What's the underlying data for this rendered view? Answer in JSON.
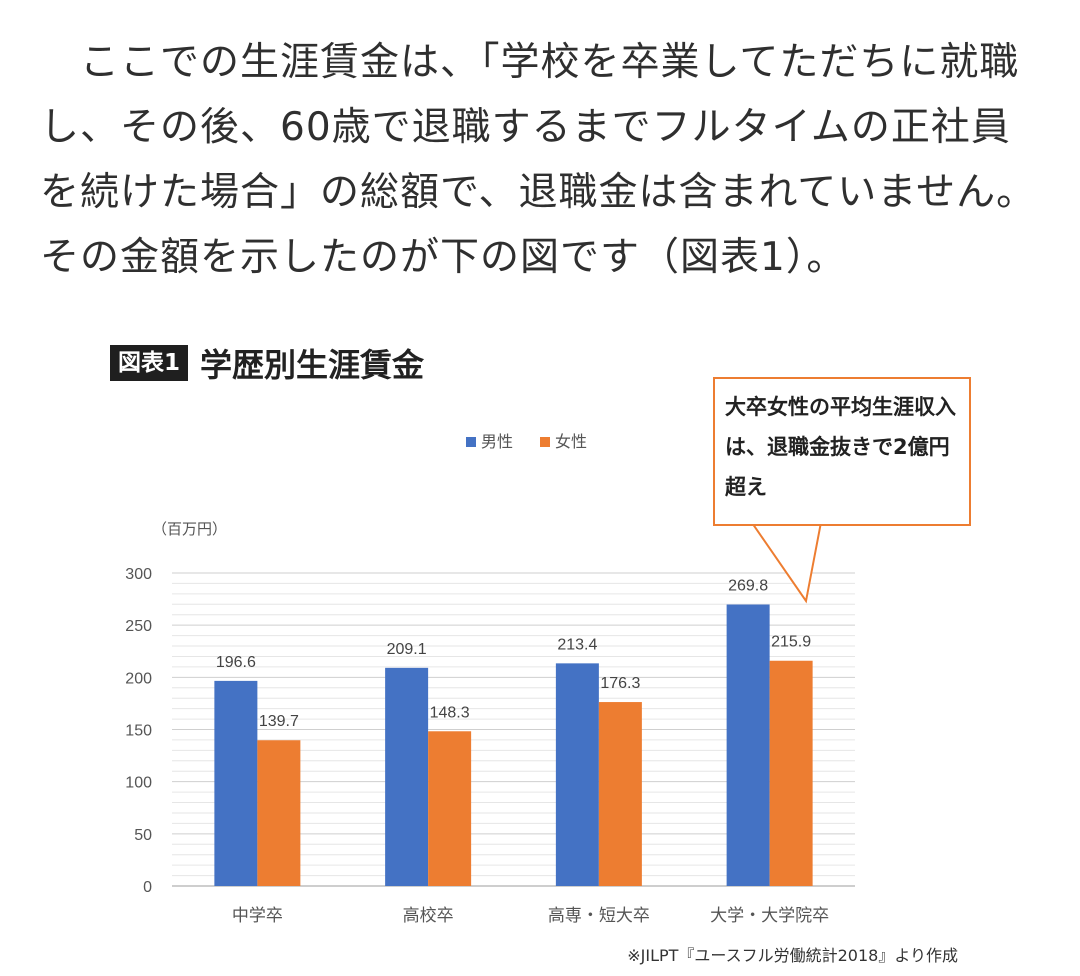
{
  "paragraph": "ここでの生涯賃金は、「学校を卒業してただちに就職し、その後、60歳で退職するまでフルタイムの正社員を続けた場合」の総額で、退職金は含まれていません。その金額を示したのが下の図です（図表1）。",
  "figure": {
    "badge": "図表1",
    "title": "学歴別生涯賃金",
    "callout": "大卒女性の平均生涯収入は、退職金抜きで2億円超え",
    "source": "※JILPT『ユースフル労働統計2018』より作成"
  },
  "chart_data": {
    "type": "bar",
    "categories": [
      "中学卒",
      "高校卒",
      "高専・短大卒",
      "大学・大学院卒"
    ],
    "series": [
      {
        "name": "男性",
        "values": [
          196.6,
          209.1,
          213.4,
          269.8
        ],
        "color": "#4472c4"
      },
      {
        "name": "女性",
        "values": [
          139.7,
          148.3,
          176.3,
          215.9
        ],
        "color": "#ed7d31"
      }
    ],
    "unit_label": "（百万円）",
    "ylim": [
      0,
      300
    ],
    "yticks": [
      0,
      50,
      100,
      150,
      200,
      250,
      300
    ],
    "grid": true,
    "legend": "top-center",
    "data_labels": true
  }
}
